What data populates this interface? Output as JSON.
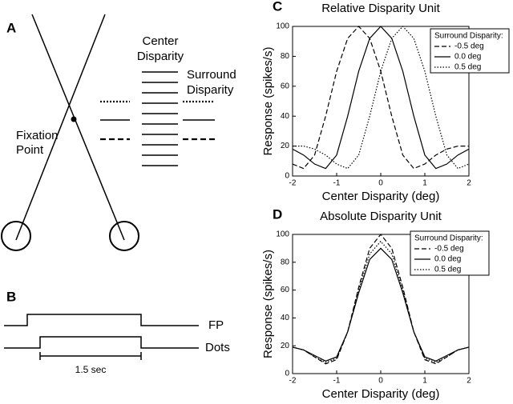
{
  "panel_a": {
    "letter": "A",
    "fixation": [
      "Fixation",
      "Point"
    ],
    "center": [
      "Center",
      "Disparity"
    ],
    "surround": [
      "Surround",
      "Disparity"
    ]
  },
  "panel_b": {
    "letter": "B",
    "fp": "FP",
    "dots": "Dots",
    "scale": "1.5 sec"
  },
  "chart_data": [
    {
      "type": "line",
      "label": "C",
      "title": "Relative Disparity Unit",
      "x_label": "Center Disparity (deg)",
      "y_label": "Response (spikes/s)",
      "x": [
        -2,
        -1.75,
        -1.5,
        -1.25,
        -1,
        -0.75,
        -0.5,
        -0.25,
        0,
        0.25,
        0.5,
        0.75,
        1,
        1.25,
        1.5,
        1.75,
        2
      ],
      "xlim": [
        -2,
        2
      ],
      "xticks": [
        -2,
        -1,
        0,
        1,
        2
      ],
      "ylim": [
        0,
        100
      ],
      "yticks": [
        0,
        20,
        40,
        60,
        80,
        100
      ],
      "legend_title": "Surround Disparity:",
      "legend": "upper right",
      "series": [
        {
          "name": "-0.5 deg",
          "color": "#000000",
          "dash": "dashed",
          "values": [
            8,
            5,
            14,
            40,
            70,
            92,
            100,
            92,
            70,
            40,
            14,
            5,
            8,
            14,
            18,
            20,
            20
          ]
        },
        {
          "name": "0.0 deg",
          "color": "#000000",
          "dash": "solid",
          "values": [
            18,
            14,
            8,
            5,
            14,
            40,
            70,
            92,
            100,
            92,
            70,
            40,
            14,
            5,
            8,
            14,
            18
          ]
        },
        {
          "name": "0.5 deg",
          "color": "#000000",
          "dash": "dotted",
          "values": [
            20,
            20,
            18,
            14,
            8,
            5,
            14,
            40,
            70,
            92,
            100,
            92,
            70,
            40,
            14,
            5,
            8
          ]
        }
      ]
    },
    {
      "type": "line",
      "label": "D",
      "title": "Absolute Disparity Unit",
      "x_label": "Center Disparity (deg)",
      "y_label": "Response (spikes/s)",
      "x": [
        -2,
        -1.75,
        -1.5,
        -1.25,
        -1,
        -0.75,
        -0.5,
        -0.25,
        0,
        0.25,
        0.5,
        0.75,
        1,
        1.25,
        1.5,
        1.75,
        2
      ],
      "xlim": [
        -2,
        2
      ],
      "xticks": [
        -2,
        -1,
        0,
        1,
        2
      ],
      "ylim": [
        0,
        100
      ],
      "yticks": [
        0,
        20,
        40,
        60,
        80,
        100
      ],
      "legend_title": "Surround Disparity:",
      "legend": "upper right",
      "series": [
        {
          "name": "-0.5 deg",
          "color": "#000000",
          "dash": "dashed",
          "values": [
            19,
            17,
            12,
            7,
            10,
            30,
            62,
            90,
            100,
            90,
            62,
            30,
            10,
            7,
            12,
            17,
            19
          ]
        },
        {
          "name": "0.0 deg",
          "color": "#000000",
          "dash": "solid",
          "values": [
            19,
            17,
            13,
            9,
            12,
            30,
            58,
            82,
            90,
            82,
            58,
            30,
            12,
            9,
            13,
            17,
            19
          ]
        },
        {
          "name": "0.5 deg",
          "color": "#000000",
          "dash": "dotted",
          "values": [
            19,
            17,
            12,
            8,
            11,
            30,
            60,
            86,
            95,
            86,
            60,
            30,
            11,
            8,
            12,
            17,
            19
          ]
        }
      ]
    }
  ]
}
